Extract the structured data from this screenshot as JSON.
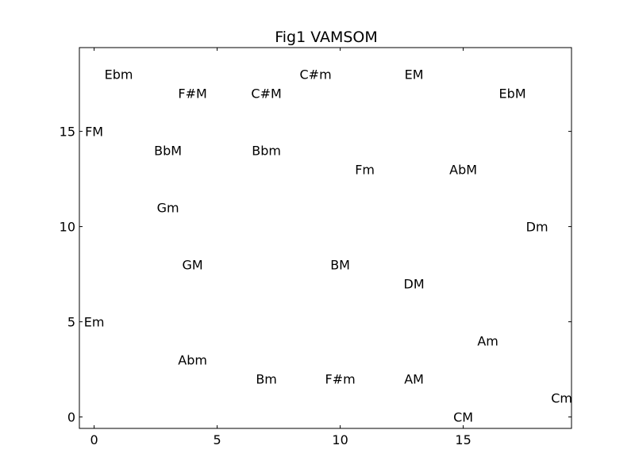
{
  "chart_data": {
    "type": "scatter",
    "title": "Fig1 VAMSOM",
    "xlabel": "",
    "ylabel": "",
    "xlim": [
      -0.6,
      19.4
    ],
    "ylim": [
      -0.6,
      19.4
    ],
    "xticks": [
      0,
      5,
      10,
      15
    ],
    "yticks": [
      0,
      5,
      10,
      15
    ],
    "grid": false,
    "points": [
      {
        "label": "Ebm",
        "x": 1,
        "y": 18
      },
      {
        "label": "C#m",
        "x": 9,
        "y": 18
      },
      {
        "label": "EM",
        "x": 13,
        "y": 18
      },
      {
        "label": "F#M",
        "x": 4,
        "y": 17
      },
      {
        "label": "C#M",
        "x": 7,
        "y": 17
      },
      {
        "label": "EbM",
        "x": 17,
        "y": 17
      },
      {
        "label": "FM",
        "x": 0,
        "y": 15
      },
      {
        "label": "BbM",
        "x": 3,
        "y": 14
      },
      {
        "label": "Bbm",
        "x": 7,
        "y": 14
      },
      {
        "label": "Fm",
        "x": 11,
        "y": 13
      },
      {
        "label": "AbM",
        "x": 15,
        "y": 13
      },
      {
        "label": "Gm",
        "x": 3,
        "y": 11
      },
      {
        "label": "Dm",
        "x": 18,
        "y": 10
      },
      {
        "label": "GM",
        "x": 4,
        "y": 8
      },
      {
        "label": "BM",
        "x": 10,
        "y": 8
      },
      {
        "label": "DM",
        "x": 13,
        "y": 7
      },
      {
        "label": "Em",
        "x": 0,
        "y": 5
      },
      {
        "label": "Am",
        "x": 16,
        "y": 4
      },
      {
        "label": "Abm",
        "x": 4,
        "y": 3
      },
      {
        "label": "Bm",
        "x": 7,
        "y": 2
      },
      {
        "label": "F#m",
        "x": 10,
        "y": 2
      },
      {
        "label": "AM",
        "x": 13,
        "y": 2
      },
      {
        "label": "Cm",
        "x": 19,
        "y": 1
      },
      {
        "label": "CM",
        "x": 15,
        "y": 0
      }
    ]
  }
}
